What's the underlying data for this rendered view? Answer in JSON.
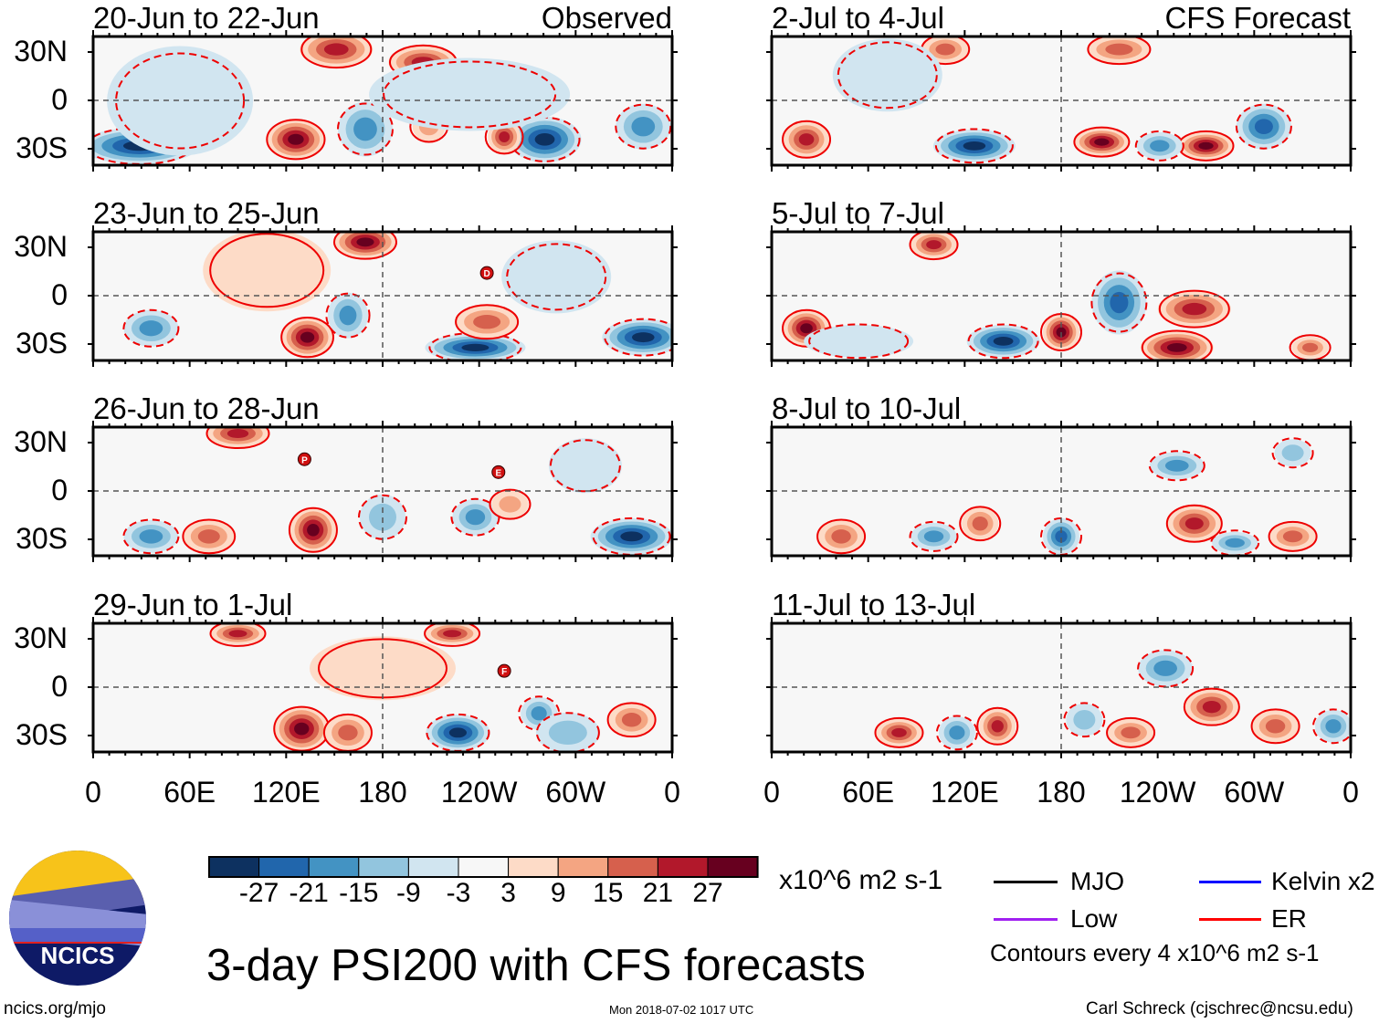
{
  "panels_left": [
    {
      "title": "20-Jun to 22-Jun",
      "right_label": "Observed"
    },
    {
      "title": "23-Jun to 25-Jun",
      "storms": [
        "D"
      ]
    },
    {
      "title": "26-Jun to 28-Jun",
      "storms": [
        "P",
        "E"
      ]
    },
    {
      "title": "29-Jun to 1-Jul",
      "storms": [
        "F"
      ]
    }
  ],
  "panels_right": [
    {
      "title": "2-Jul to 4-Jul",
      "right_label": "CFS Forecast"
    },
    {
      "title": "5-Jul to 7-Jul"
    },
    {
      "title": "8-Jul to 10-Jul"
    },
    {
      "title": "11-Jul to 13-Jul"
    }
  ],
  "lat_labels": [
    "30N",
    "0",
    "30S"
  ],
  "lon_labels": [
    "0",
    "60E",
    "120E",
    "180",
    "120W",
    "60W",
    "0"
  ],
  "colorbar": {
    "labels": [
      "-27",
      "-21",
      "-15",
      "-9",
      "-3",
      "3",
      "9",
      "15",
      "21",
      "27"
    ],
    "colors": [
      "#0d3160",
      "#2166ac",
      "#4393c3",
      "#92c5de",
      "#d1e5f0",
      "#f7f7f7",
      "#fddbc7",
      "#f4a582",
      "#d6604d",
      "#b2182b",
      "#67001f"
    ],
    "units": "x10^6 m2 s-1"
  },
  "legend": {
    "items": [
      {
        "label": "MJO",
        "color": "#000000"
      },
      {
        "label": "Kelvin x2",
        "color": "#0000ff"
      },
      {
        "label": "Low",
        "color": "#a020f0"
      },
      {
        "label": "ER",
        "color": "#ff0000"
      }
    ],
    "contour_note": "Contours every 4 x10^6 m2 s-1"
  },
  "logo": {
    "text": "NCICS"
  },
  "main_title": "3-day PSI200 with CFS forecasts",
  "footer": {
    "url": "ncics.org/mjo",
    "timestamp": "Mon 2018-07-02 1017 UTC",
    "author": "Carl Schreck (cjschrec@ncsu.edu)"
  }
}
